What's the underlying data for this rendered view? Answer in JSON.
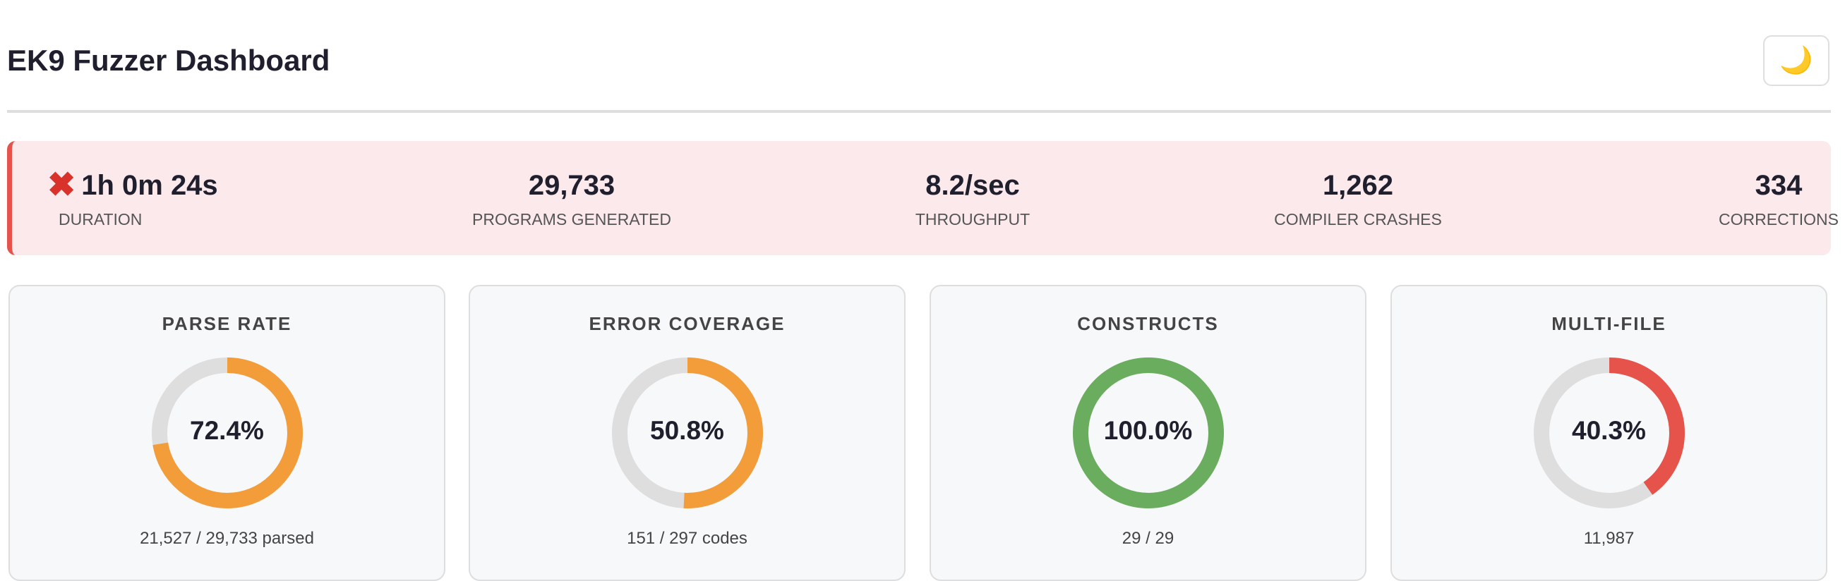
{
  "header": {
    "title": "EK9 Fuzzer Dashboard",
    "theme_toggle_icon": "moon-icon",
    "theme_toggle_glyph": "🌙"
  },
  "summary": {
    "status_icon": "cross-mark-icon",
    "status_glyph": "✖",
    "accent": "#e5534b",
    "stats": [
      {
        "value": "1h 0m 24s",
        "label": "DURATION"
      },
      {
        "value": "29,733",
        "label": "PROGRAMS GENERATED"
      },
      {
        "value": "8.2/sec",
        "label": "THROUGHPUT"
      },
      {
        "value": "1,262",
        "label": "COMPILER CRASHES"
      },
      {
        "value": "334",
        "label": "CORRECTIONS"
      }
    ]
  },
  "cards": [
    {
      "title": "PARSE RATE",
      "percent": 72.4,
      "percent_label": "72.4%",
      "color": "#f39c3a",
      "sub": "21,527 / 29,733 parsed"
    },
    {
      "title": "ERROR COVERAGE",
      "percent": 50.8,
      "percent_label": "50.8%",
      "color": "#f39c3a",
      "sub": "151 / 297 codes"
    },
    {
      "title": "CONSTRUCTS",
      "percent": 100.0,
      "percent_label": "100.0%",
      "color": "#6aad5e",
      "sub": "29 / 29"
    },
    {
      "title": "MULTI-FILE",
      "percent": 40.3,
      "percent_label": "40.3%",
      "color": "#e5534b",
      "sub": "11,987"
    }
  ],
  "ring_track_color": "#dedede"
}
